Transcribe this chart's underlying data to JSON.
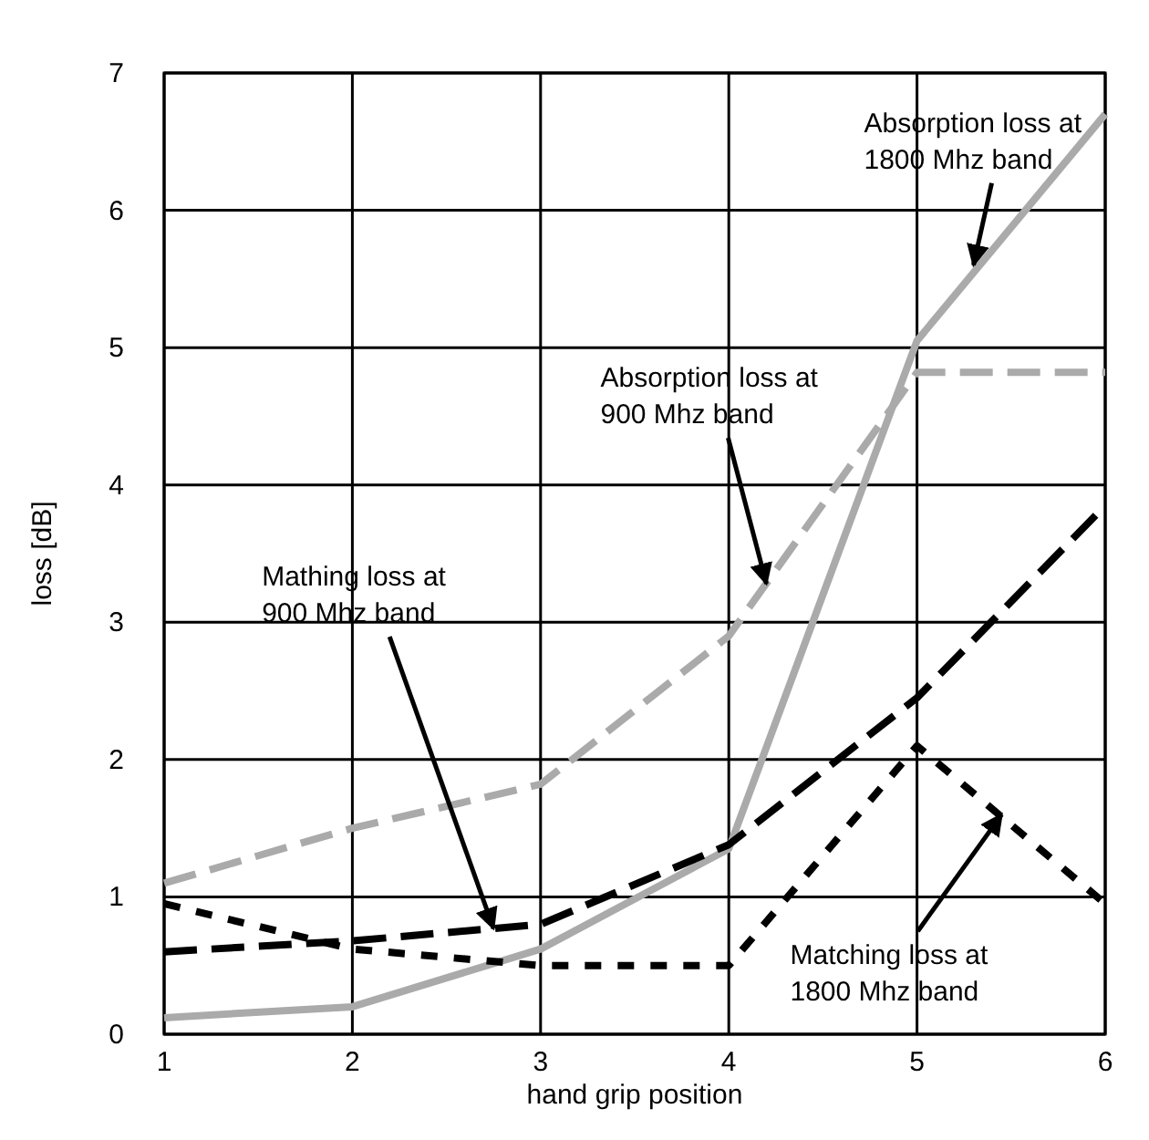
{
  "chart_data": {
    "type": "line",
    "xlabel": "hand grip position",
    "ylabel": "loss [dB]",
    "x": [
      1,
      2,
      3,
      4,
      5,
      6
    ],
    "xlim": [
      1,
      6
    ],
    "ylim": [
      0,
      7
    ],
    "xticks": [
      1,
      2,
      3,
      4,
      5,
      6
    ],
    "yticks": [
      0,
      1,
      2,
      3,
      4,
      5,
      6,
      7
    ],
    "grid": true,
    "marker": "none",
    "series": [
      {
        "color": "#aaaaaa",
        "line_style": "solid",
        "values": [
          0.12,
          0.2,
          0.62,
          1.35,
          5.05,
          6.7
        ]
      },
      {
        "color": "#aaaaaa",
        "line_style": "dashed",
        "values": [
          1.1,
          1.5,
          1.82,
          2.9,
          4.82,
          4.82
        ]
      },
      {
        "color": "#000000",
        "line_style": "dashed",
        "values": [
          0.6,
          0.68,
          0.8,
          1.38,
          2.45,
          3.85
        ]
      },
      {
        "color": "#000000",
        "line_style": "dotted",
        "values": [
          0.95,
          0.62,
          0.5,
          0.5,
          2.1,
          0.95
        ]
      }
    ],
    "annotations": [
      {
        "text": "Absorption loss at\n1800 Mhz band",
        "x": 5.3,
        "y": 5.6
      },
      {
        "text": "Absorption loss at\n900 Mhz band",
        "x": 4.2,
        "y": 3.28
      },
      {
        "text": "Mathing loss at\n900 Mhz band",
        "x": 2.75,
        "y": 0.77
      },
      {
        "text": "Matching loss at\n1800 Mhz band",
        "x": 5.45,
        "y": 1.6
      }
    ]
  }
}
